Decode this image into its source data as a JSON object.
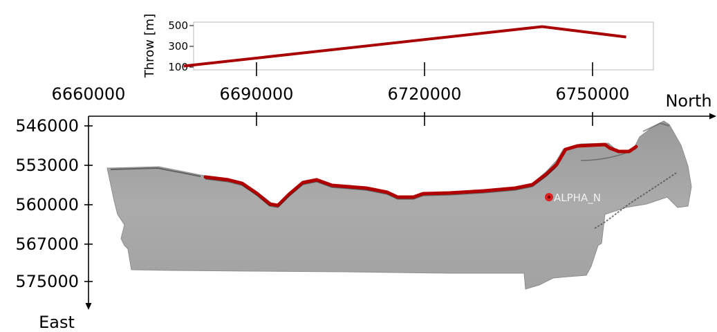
{
  "chart_data": [
    {
      "type": "line",
      "ylabel": "Throw [m]",
      "xlabel": "",
      "ylim": [
        80,
        520
      ],
      "xlim": [
        6660000,
        6770000
      ],
      "yticks": [
        100,
        300,
        500
      ],
      "xticks": [
        6690000,
        6720000,
        6750000
      ],
      "grid": false,
      "series": [
        {
          "color": "#a80000",
          "x": [
            6677000,
            6741000,
            6756000
          ],
          "y": [
            110,
            490,
            390
          ]
        }
      ]
    },
    {
      "type": "map",
      "xlabel": "North",
      "ylabel": "East",
      "xlim": [
        6660000,
        6770000
      ],
      "ylim": [
        546000,
        575000
      ],
      "xticks": [
        6660000,
        6690000,
        6720000,
        6750000
      ],
      "yticks": [
        546000,
        553000,
        560000,
        567000,
        575000
      ],
      "surface_color": "#a8a8a8",
      "fault_color": "#b00000",
      "well": {
        "label": "ALPHA_N",
        "north": 6742000,
        "east": 559700,
        "color": "#e02020"
      }
    }
  ],
  "labels": {
    "top_ylabel": "Throw [m]",
    "map_xaxis": "North",
    "map_yaxis": "East",
    "well_name": "ALPHA_N"
  }
}
